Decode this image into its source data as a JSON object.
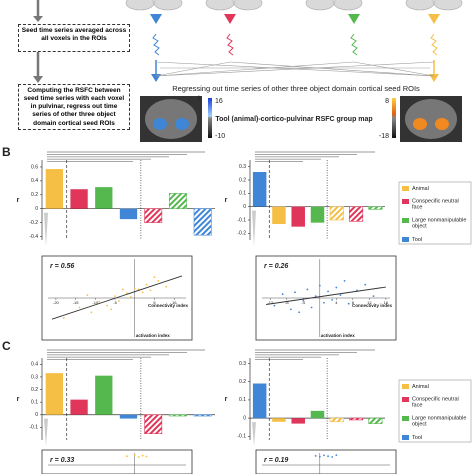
{
  "boxes": [
    "Seed time series averaged across all voxels in the ROIs",
    "Computing the RSFC between seed time series with each voxel in pulvinar, regress out time series of other three object domain cortical seed ROIs"
  ],
  "regress_text": "Regressing out time series of other three object domain cortical seed ROIs",
  "map_title": "Tool (animal)-cortico-pulvinar RSFC group map",
  "colorbars": [
    {
      "label": "t",
      "max": 16,
      "min": -10
    },
    {
      "max": 8,
      "min": -18
    }
  ],
  "panel_labels": [
    "B",
    "C"
  ],
  "chart_data": [
    {
      "type": "bar",
      "ylabel": "r",
      "ylim": [
        -0.45,
        0.7
      ],
      "yticks": [
        -0.4,
        -0.2,
        0,
        0.2,
        0.4,
        0.6
      ],
      "values": [
        0.57,
        0.28,
        0.31,
        -0.15,
        -0.2,
        0.22,
        -0.38
      ],
      "colors": [
        "#f5bf45",
        "#e0365a",
        "#55b84f",
        "#3f86d6",
        "#e0365a",
        "#55b84f",
        "#3f86d6"
      ],
      "hatched": [
        false,
        false,
        false,
        false,
        true,
        true,
        true
      ]
    },
    {
      "type": "bar",
      "ylabel": "r",
      "ylim": [
        -0.25,
        0.35
      ],
      "yticks": [
        -0.2,
        -0.1,
        0,
        0.1,
        0.2,
        0.3
      ],
      "values": [
        0.26,
        -0.13,
        -0.15,
        -0.12,
        -0.1,
        -0.11,
        -0.02
      ],
      "colors": [
        "#3f86d6",
        "#f5bf45",
        "#e0365a",
        "#55b84f",
        "#f5bf45",
        "#e0365a",
        "#55b84f"
      ],
      "hatched": [
        false,
        false,
        false,
        false,
        true,
        true,
        true
      ],
      "legend": [
        {
          "name": "Animal",
          "color": "#f5bf45"
        },
        {
          "name": "Conspecific neutral face",
          "color": "#e0365a"
        },
        {
          "name": "Large nonmanipulable object",
          "color": "#55b84f"
        },
        {
          "name": "Tool",
          "color": "#3f86d6"
        }
      ]
    },
    {
      "type": "bar",
      "ylabel": "r",
      "ylim": [
        -0.2,
        0.45
      ],
      "yticks": [
        -0.1,
        0,
        0.1,
        0.2,
        0.3,
        0.4
      ],
      "values": [
        0.33,
        0.12,
        0.31,
        -0.03,
        -0.15,
        -0.01,
        -0.01
      ],
      "colors": [
        "#f5bf45",
        "#e0365a",
        "#55b84f",
        "#3f86d6",
        "#e0365a",
        "#55b84f",
        "#3f86d6"
      ],
      "hatched": [
        false,
        false,
        false,
        false,
        true,
        true,
        true
      ]
    },
    {
      "type": "bar",
      "ylabel": "r",
      "ylim": [
        -0.12,
        0.33
      ],
      "yticks": [
        -0.1,
        0,
        0.1,
        0.2,
        0.3
      ],
      "values": [
        0.19,
        -0.02,
        -0.03,
        0.04,
        -0.02,
        -0.01,
        -0.03
      ],
      "colors": [
        "#3f86d6",
        "#f5bf45",
        "#e0365a",
        "#55b84f",
        "#f5bf45",
        "#e0365a",
        "#55b84f"
      ],
      "hatched": [
        false,
        false,
        false,
        false,
        true,
        true,
        true
      ],
      "legend": [
        {
          "name": "Animal",
          "color": "#f5bf45"
        },
        {
          "name": "Conspecific neutral face",
          "color": "#e0365a"
        },
        {
          "name": "Large nonmanipulable object",
          "color": "#55b84f"
        },
        {
          "name": "Tool",
          "color": "#3f86d6"
        }
      ]
    },
    {
      "type": "scatter",
      "annotation": "r = 0.56",
      "xlabel": "Connectivity index",
      "ylabel": "activation index",
      "color": "#f5bf45",
      "xlim": [
        -22,
        13
      ],
      "ylim": [
        -4,
        4
      ],
      "xticks": [
        -20,
        -15,
        -10,
        -5,
        5,
        10
      ],
      "x": [
        -18,
        -14,
        -11,
        -9,
        -7,
        -5,
        -4,
        -2,
        -1,
        1,
        2,
        3,
        4,
        6,
        8,
        -6,
        -3,
        0,
        5,
        -12
      ],
      "y": [
        -2.1,
        -1.0,
        -1.5,
        -0.4,
        -0.8,
        0.2,
        -0.3,
        0.5,
        0.1,
        0.9,
        0.6,
        1.4,
        0.8,
        1.8,
        1.2,
        -1.2,
        0.9,
        1.0,
        2.2,
        0.3
      ]
    },
    {
      "type": "scatter",
      "annotation": "r = 0.26",
      "xlabel": "Connectivity index",
      "ylabel": "activation index",
      "color": "#3f86d6",
      "xlim": [
        -14,
        17
      ],
      "ylim": [
        -4,
        4
      ],
      "xticks": [
        -12,
        -8,
        -4,
        4,
        8,
        12,
        16
      ],
      "x": [
        -11,
        -9,
        -7,
        -6,
        -4,
        -3,
        -2,
        -1,
        0,
        1,
        2,
        3,
        4,
        5,
        7,
        9,
        11,
        -5,
        6,
        13
      ],
      "y": [
        -0.8,
        0.4,
        -1.2,
        0.6,
        -0.3,
        0.9,
        -1.0,
        0.2,
        1.3,
        -0.5,
        0.7,
        -0.2,
        1.1,
        0.3,
        -0.6,
        0.8,
        1.4,
        -1.5,
        1.8,
        0.2
      ]
    },
    {
      "type": "scatter",
      "annotation": "r = 0.33",
      "color": "#f5bf45",
      "xlim": [
        -22,
        13
      ],
      "ylim": [
        -4,
        4
      ],
      "x": [
        -2,
        0,
        1,
        2,
        3
      ],
      "y": [
        3.2,
        3.6,
        2.9,
        3.4,
        3.1
      ]
    },
    {
      "type": "scatter",
      "annotation": "r = 0.19",
      "color": "#3f86d6",
      "xlim": [
        -14,
        17
      ],
      "ylim": [
        -4,
        4
      ],
      "x": [
        -1,
        0,
        1,
        2,
        3,
        4
      ],
      "y": [
        3.3,
        3.0,
        3.5,
        3.2,
        2.9,
        3.6
      ]
    }
  ]
}
